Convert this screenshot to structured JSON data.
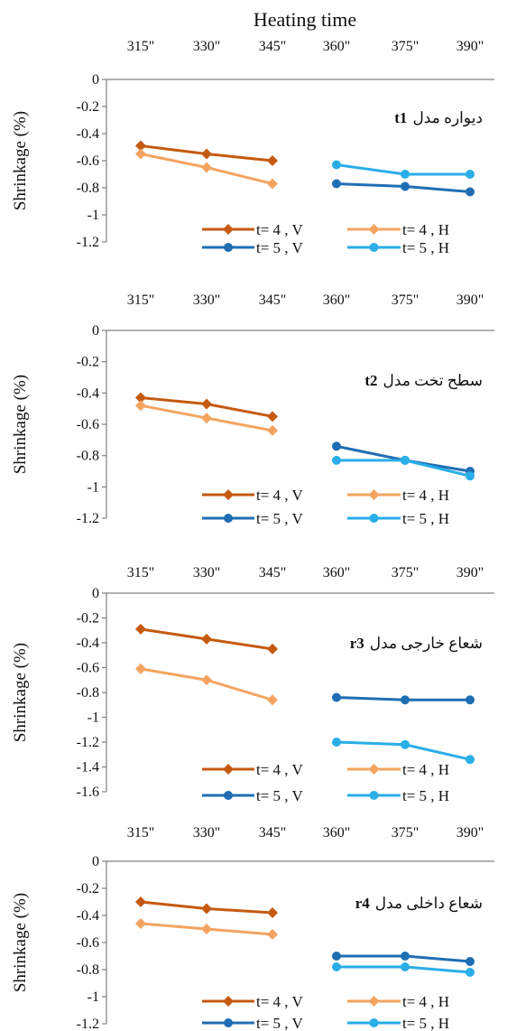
{
  "figure_title": "Heating time",
  "x_ticks": [
    "315\"",
    "330\"",
    "345\"",
    "360\"",
    "375\"",
    "390\""
  ],
  "colors": {
    "t4V": "#c55a11",
    "t4H": "#f4a460",
    "t5V": "#1f6eb4",
    "t5H": "#29aee8"
  },
  "chart_data": [
    {
      "type": "line",
      "annotation_code": "t1",
      "annotation_text": "دیواره مدل",
      "ylabel": "Shrinkage (%)",
      "ylim": [
        -1.2,
        0
      ],
      "y_ticks": [
        "0",
        "-0.2",
        "-0.4",
        "-0.6",
        "-0.8",
        "-1",
        "-1.2"
      ],
      "legend_placement": "bottom",
      "series": [
        {
          "name": "t= 4 , V",
          "key": "t4V",
          "x": [
            "315\"",
            "330\"",
            "345\""
          ],
          "values": [
            -0.49,
            -0.55,
            -0.6
          ]
        },
        {
          "name": "t= 4 , H",
          "key": "t4H",
          "x": [
            "315\"",
            "330\"",
            "345\""
          ],
          "values": [
            -0.55,
            -0.65,
            -0.77
          ]
        },
        {
          "name": "t= 5 , V",
          "key": "t5V",
          "x": [
            "360\"",
            "375\"",
            "390\""
          ],
          "values": [
            -0.77,
            -0.79,
            -0.83
          ]
        },
        {
          "name": "t= 5 , H",
          "key": "t5H",
          "x": [
            "360\"",
            "375\"",
            "390\""
          ],
          "values": [
            -0.63,
            -0.7,
            -0.7
          ]
        }
      ]
    },
    {
      "type": "line",
      "annotation_code": "t2",
      "annotation_text": "سطح تخت مدل",
      "ylabel": "Shrinkage (%)",
      "ylim": [
        -1.2,
        0
      ],
      "y_ticks": [
        "0",
        "-0.2",
        "-0.4",
        "-0.6",
        "-0.8",
        "-1",
        "-1.2"
      ],
      "legend_placement": "bottom",
      "series": [
        {
          "name": "t= 4 , V",
          "key": "t4V",
          "x": [
            "315\"",
            "330\"",
            "345\""
          ],
          "values": [
            -0.43,
            -0.47,
            -0.55
          ]
        },
        {
          "name": "t= 4 , H",
          "key": "t4H",
          "x": [
            "315\"",
            "330\"",
            "345\""
          ],
          "values": [
            -0.48,
            -0.56,
            -0.64
          ]
        },
        {
          "name": "t= 5 , V",
          "key": "t5V",
          "x": [
            "360\"",
            "375\"",
            "390\""
          ],
          "values": [
            -0.74,
            -0.83,
            -0.9
          ]
        },
        {
          "name": "t= 5 , H",
          "key": "t5H",
          "x": [
            "360\"",
            "375\"",
            "390\""
          ],
          "values": [
            -0.83,
            -0.83,
            -0.93
          ]
        }
      ]
    },
    {
      "type": "line",
      "annotation_code": "r3",
      "annotation_text": "شعاع خارجی مدل",
      "ylabel": "Shrinkage (%)",
      "ylim": [
        -1.6,
        0
      ],
      "y_ticks": [
        "0",
        "-0.2",
        "-0.4",
        "-0.6",
        "-0.8",
        "-1",
        "-1.2",
        "-1.4",
        "-1.6"
      ],
      "legend_placement": "bottom",
      "series": [
        {
          "name": "t= 4 , V",
          "key": "t4V",
          "x": [
            "315\"",
            "330\"",
            "345\""
          ],
          "values": [
            -0.29,
            -0.37,
            -0.45
          ]
        },
        {
          "name": "t= 4 , H",
          "key": "t4H",
          "x": [
            "315\"",
            "330\"",
            "345\""
          ],
          "values": [
            -0.61,
            -0.7,
            -0.86
          ]
        },
        {
          "name": "t= 5 , V",
          "key": "t5V",
          "x": [
            "360\"",
            "375\"",
            "390\""
          ],
          "values": [
            -0.84,
            -0.86,
            -0.86
          ]
        },
        {
          "name": "t= 5 , H",
          "key": "t5H",
          "x": [
            "360\"",
            "375\"",
            "390\""
          ],
          "values": [
            -1.2,
            -1.22,
            -1.34
          ]
        }
      ]
    },
    {
      "type": "line",
      "annotation_code": "r4",
      "annotation_text": "شعاع داخلی مدل",
      "ylabel": "Shrinkage (%)",
      "ylim": [
        -1.2,
        0
      ],
      "y_ticks": [
        "0",
        "-0.2",
        "-0.4",
        "-0.6",
        "-0.8",
        "-1",
        "-1.2"
      ],
      "legend_placement": "bottom",
      "series": [
        {
          "name": "t= 4 , V",
          "key": "t4V",
          "x": [
            "315\"",
            "330\"",
            "345\""
          ],
          "values": [
            -0.3,
            -0.35,
            -0.38
          ]
        },
        {
          "name": "t= 4 , H",
          "key": "t4H",
          "x": [
            "315\"",
            "330\"",
            "345\""
          ],
          "values": [
            -0.46,
            -0.5,
            -0.54
          ]
        },
        {
          "name": "t= 5 , V",
          "key": "t5V",
          "x": [
            "360\"",
            "375\"",
            "390\""
          ],
          "values": [
            -0.7,
            -0.7,
            -0.74
          ]
        },
        {
          "name": "t= 5 , H",
          "key": "t5H",
          "x": [
            "360\"",
            "375\"",
            "390\""
          ],
          "values": [
            -0.78,
            -0.78,
            -0.82
          ]
        }
      ]
    }
  ]
}
